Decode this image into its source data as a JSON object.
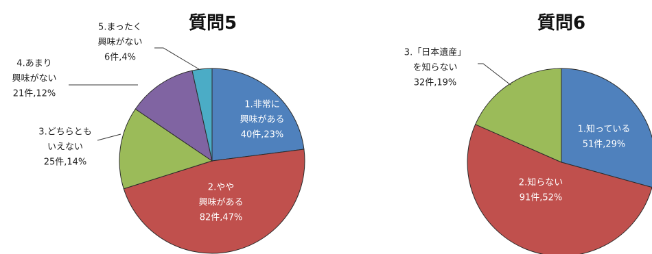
{
  "chart_data": [
    {
      "type": "pie",
      "title": "質問5",
      "slices": [
        {
          "lines": [
            "1.非常に",
            "興味がある",
            "40件,23%"
          ],
          "count": 40,
          "percent": 23,
          "color": "#4f81bd",
          "label_pos": "inside"
        },
        {
          "lines": [
            "2.やや",
            "興味がある",
            "82件,47%"
          ],
          "count": 82,
          "percent": 47,
          "color": "#c0504d",
          "label_pos": "inside"
        },
        {
          "lines": [
            "3.どちらとも",
            "いえない",
            "25件,14%"
          ],
          "count": 25,
          "percent": 14,
          "color": "#9bbb59",
          "label_pos": "outside"
        },
        {
          "lines": [
            "4.あまり",
            "興味がない",
            "21件,12%"
          ],
          "count": 21,
          "percent": 12,
          "color": "#8064a2",
          "label_pos": "outside"
        },
        {
          "lines": [
            "5.まったく",
            "興味がない",
            "6件,4%"
          ],
          "count": 6,
          "percent": 4,
          "color": "#4bacc6",
          "label_pos": "outside"
        }
      ]
    },
    {
      "type": "pie",
      "title": "質問6",
      "slices": [
        {
          "lines": [
            "1.知っている",
            "51件,29%"
          ],
          "count": 51,
          "percent": 29,
          "color": "#4f81bd",
          "label_pos": "inside"
        },
        {
          "lines": [
            "2.知らない",
            "91件,52%"
          ],
          "count": 91,
          "percent": 52,
          "color": "#c0504d",
          "label_pos": "inside"
        },
        {
          "lines": [
            "3.「日本遺産」",
            "を知らない",
            "32件,19%"
          ],
          "count": 32,
          "percent": 19,
          "color": "#9bbb59",
          "label_pos": "outside"
        }
      ]
    }
  ]
}
